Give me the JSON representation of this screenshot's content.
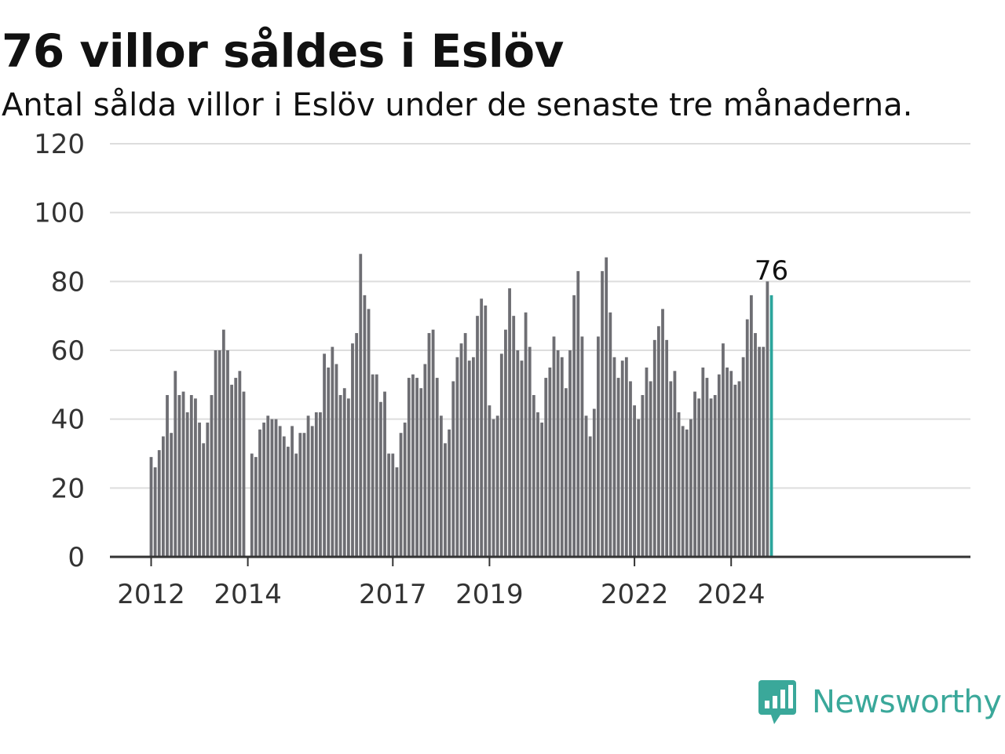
{
  "title": "76 villor såldes i Eslöv",
  "subtitle": "Antal sålda villor i Eslöv under de senaste tre månaderna.",
  "brand": "Newsworthy",
  "colors": {
    "bar": "#6e6e73",
    "highlight": "#2ba59c",
    "grid": "#dddddd",
    "axis": "#333333",
    "brand": "#3aa89a"
  },
  "chart_data": {
    "type": "bar",
    "title": "76 villor såldes i Eslöv",
    "subtitle": "Antal sålda villor i Eslöv under de senaste tre månaderna.",
    "ylim": [
      0,
      120
    ],
    "yticks": [
      0,
      20,
      40,
      60,
      80,
      100,
      120
    ],
    "xticks": [
      "2012",
      "2014",
      "2017",
      "2019",
      "2022",
      "2024"
    ],
    "grid": true,
    "series_start": "2012-01",
    "annotation": "76",
    "values": [
      29,
      26,
      31,
      35,
      47,
      36,
      54,
      47,
      48,
      42,
      47,
      46,
      39,
      33,
      39,
      47,
      60,
      60,
      66,
      60,
      50,
      52,
      54,
      48,
      null,
      30,
      29,
      37,
      39,
      41,
      40,
      40,
      38,
      35,
      32,
      38,
      30,
      36,
      36,
      41,
      38,
      42,
      42,
      59,
      55,
      61,
      56,
      47,
      49,
      46,
      62,
      65,
      88,
      76,
      72,
      53,
      53,
      45,
      48,
      30,
      30,
      26,
      36,
      39,
      52,
      53,
      52,
      49,
      56,
      65,
      66,
      52,
      41,
      33,
      37,
      51,
      58,
      62,
      65,
      57,
      58,
      70,
      75,
      73,
      44,
      40,
      41,
      59,
      66,
      78,
      70,
      60,
      57,
      71,
      61,
      47,
      42,
      39,
      52,
      55,
      64,
      60,
      58,
      49,
      60,
      76,
      83,
      64,
      41,
      35,
      43,
      64,
      83,
      87,
      71,
      58,
      52,
      57,
      58,
      51,
      44,
      40,
      47,
      55,
      51,
      63,
      67,
      72,
      63,
      51,
      54,
      42,
      38,
      37,
      40,
      48,
      46,
      55,
      52,
      46,
      47,
      53,
      62,
      55,
      54,
      50,
      51,
      58,
      69,
      76,
      65,
      61,
      61,
      80,
      76
    ],
    "highlight_last": true
  }
}
